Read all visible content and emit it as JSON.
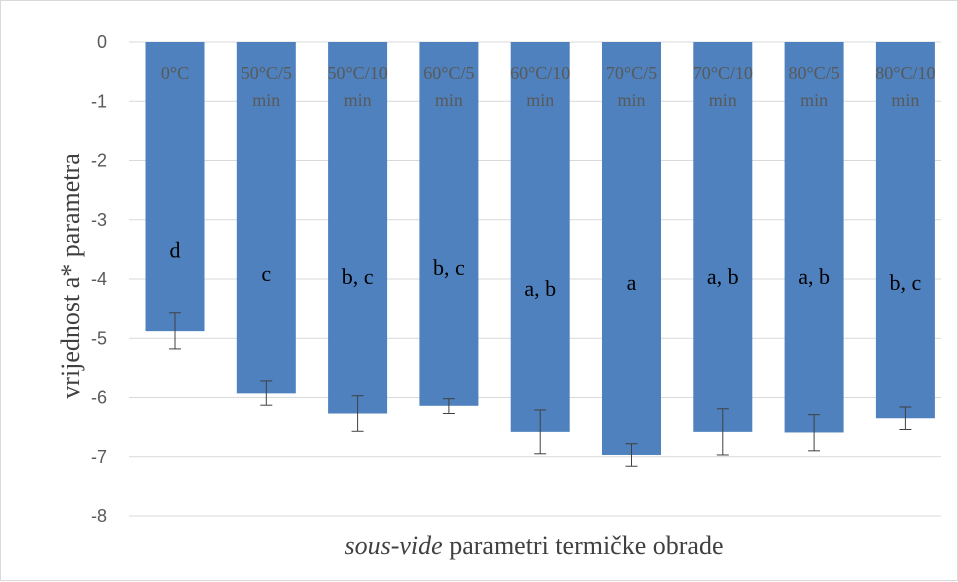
{
  "chart_data": {
    "type": "bar",
    "title": "",
    "xlabel_italic": "sous-vide",
    "xlabel_rest": " parametri termičke obrade",
    "ylabel": "vrijednost a* parametra",
    "ylim": [
      -8,
      0
    ],
    "yticks": [
      0,
      -1,
      -2,
      -3,
      -4,
      -5,
      -6,
      -7,
      -8
    ],
    "ytick_labels": [
      "0",
      "-1",
      "-2",
      "-3",
      "-4",
      "-5",
      "-6",
      "-7",
      "-8"
    ],
    "grid": true,
    "legend": "none",
    "categories": [
      [
        "0°C"
      ],
      [
        "50°C/5",
        "min"
      ],
      [
        "50°C/10",
        "min"
      ],
      [
        "60°C/5",
        "min"
      ],
      [
        "60°C/10",
        "min"
      ],
      [
        "70°C/5",
        "min"
      ],
      [
        "70°C/10",
        "min"
      ],
      [
        "80°C/5",
        "min"
      ],
      [
        "80°C/10",
        "min"
      ]
    ],
    "values": [
      -4.88,
      -5.93,
      -6.27,
      -6.14,
      -6.58,
      -6.97,
      -6.58,
      -6.59,
      -6.35
    ],
    "error_low": [
      -5.18,
      -6.13,
      -6.57,
      -6.27,
      -6.95,
      -7.16,
      -6.97,
      -6.9,
      -6.54
    ],
    "error_high": [
      -4.57,
      -5.72,
      -5.97,
      -6.02,
      -6.21,
      -6.78,
      -6.19,
      -6.29,
      -6.16
    ],
    "letters": [
      "d",
      "c",
      "b, c",
      "b, c",
      "a, b",
      "a",
      "a, b",
      "a, b",
      "b, c"
    ],
    "letter_y": [
      -3.5,
      -3.9,
      -3.95,
      -3.8,
      -4.15,
      -4.05,
      -3.95,
      -3.95,
      -4.05
    ],
    "bar_color": "#4e81bd",
    "gridline_color": "#d9d9d9",
    "errorbar_color": "#404040"
  }
}
